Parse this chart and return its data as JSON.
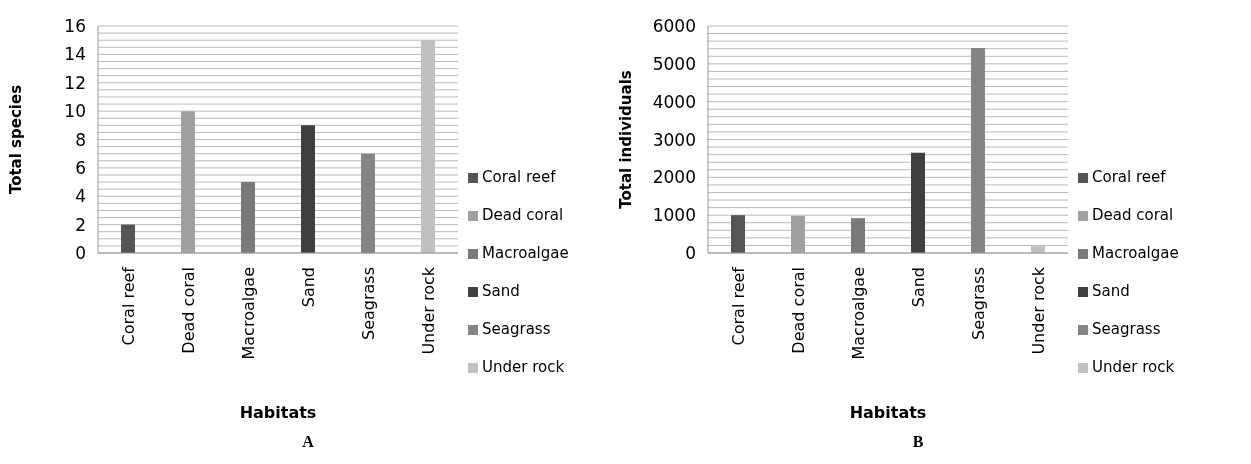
{
  "chart_data": [
    {
      "type": "bar",
      "title": "A",
      "xlabel": "Habitats",
      "ylabel": "Total species",
      "categories": [
        "Coral reef",
        "Dead coral",
        "Macroalgae",
        "Sand",
        "Seagrass",
        "Under rock"
      ],
      "series": [
        {
          "name": "Coral reef",
          "color": "#555555",
          "values": [
            2,
            null,
            null,
            null,
            null,
            null
          ]
        },
        {
          "name": "Dead coral",
          "color": "#a0a0a0",
          "values": [
            null,
            10,
            null,
            null,
            null,
            null
          ]
        },
        {
          "name": "Macroalgae",
          "color": "#7a7a7a",
          "values": [
            null,
            null,
            5,
            null,
            null,
            null
          ]
        },
        {
          "name": "Sand",
          "color": "#404040",
          "values": [
            null,
            null,
            null,
            9,
            null,
            null
          ]
        },
        {
          "name": "Seagrass",
          "color": "#858585",
          "values": [
            null,
            null,
            null,
            null,
            7,
            null
          ]
        },
        {
          "name": "Under rock",
          "color": "#c0c0c0",
          "values": [
            null,
            null,
            null,
            null,
            null,
            15
          ]
        }
      ],
      "ylim": [
        0,
        16
      ],
      "yticks": [
        0,
        {
          "value": 0.5,
          "label": null
        },
        {
          "value": 1,
          "label": null
        },
        {
          "value": 1.5,
          "label": null
        },
        2,
        {
          "value": 2.5,
          "label": null
        },
        {
          "value": 3,
          "label": null
        },
        {
          "value": 3.5,
          "label": null
        },
        4,
        {
          "value": 4.5,
          "label": null
        },
        {
          "value": 5,
          "label": null
        },
        {
          "value": 5.5,
          "label": null
        },
        6,
        {
          "value": 6.5,
          "label": null
        },
        {
          "value": 7,
          "label": null
        },
        {
          "value": 7.5,
          "label": null
        },
        8,
        {
          "value": 8.5,
          "label": null
        },
        {
          "value": 9,
          "label": null
        },
        {
          "value": 9.5,
          "label": null
        },
        10,
        {
          "value": 10.5,
          "label": null
        },
        {
          "value": 11,
          "label": null
        },
        {
          "value": 11.5,
          "label": null
        },
        12,
        {
          "value": 12.5,
          "label": null
        },
        {
          "value": 13,
          "label": null
        },
        {
          "value": 13.5,
          "label": null
        },
        14,
        {
          "value": 14.5,
          "label": null
        },
        {
          "value": 15,
          "label": null
        },
        {
          "value": 15.5,
          "label": null
        },
        16
      ],
      "grid": "y",
      "legend": "right"
    },
    {
      "type": "bar",
      "title": "B",
      "xlabel": "Habitats",
      "ylabel": "Total individuals",
      "categories": [
        "Coral reef",
        "Dead coral",
        "Macroalgae",
        "Sand",
        "Seagrass",
        "Under rock"
      ],
      "series": [
        {
          "name": "Coral reef",
          "color": "#555555",
          "values": [
            1000,
            null,
            null,
            null,
            null,
            null
          ]
        },
        {
          "name": "Dead coral",
          "color": "#a0a0a0",
          "values": [
            null,
            980,
            null,
            null,
            null,
            null
          ]
        },
        {
          "name": "Macroalgae",
          "color": "#7a7a7a",
          "values": [
            null,
            null,
            920,
            null,
            null,
            null
          ]
        },
        {
          "name": "Sand",
          "color": "#404040",
          "values": [
            null,
            null,
            null,
            2650,
            null,
            null
          ]
        },
        {
          "name": "Seagrass",
          "color": "#858585",
          "values": [
            null,
            null,
            null,
            null,
            5420,
            null
          ]
        },
        {
          "name": "Under rock",
          "color": "#c0c0c0",
          "values": [
            null,
            null,
            null,
            null,
            null,
            180
          ]
        }
      ],
      "ylim": [
        0,
        6000
      ],
      "yticks": [
        0,
        {
          "value": 200,
          "label": null
        },
        {
          "value": 400,
          "label": null
        },
        {
          "value": 600,
          "label": null
        },
        {
          "value": 800,
          "label": null
        },
        1000,
        {
          "value": 1200,
          "label": null
        },
        {
          "value": 1400,
          "label": null
        },
        {
          "value": 1600,
          "label": null
        },
        {
          "value": 1800,
          "label": null
        },
        2000,
        {
          "value": 2200,
          "label": null
        },
        {
          "value": 2400,
          "label": null
        },
        {
          "value": 2600,
          "label": null
        },
        {
          "value": 2800,
          "label": null
        },
        3000,
        {
          "value": 3200,
          "label": null
        },
        {
          "value": 3400,
          "label": null
        },
        {
          "value": 3600,
          "label": null
        },
        {
          "value": 3800,
          "label": null
        },
        4000,
        {
          "value": 4200,
          "label": null
        },
        {
          "value": 4400,
          "label": null
        },
        {
          "value": 4600,
          "label": null
        },
        {
          "value": 4800,
          "label": null
        },
        5000,
        {
          "value": 5200,
          "label": null
        },
        {
          "value": 5400,
          "label": null
        },
        {
          "value": 5600,
          "label": null
        },
        {
          "value": 5800,
          "label": null
        },
        6000
      ],
      "grid": "y",
      "legend": "right"
    }
  ]
}
